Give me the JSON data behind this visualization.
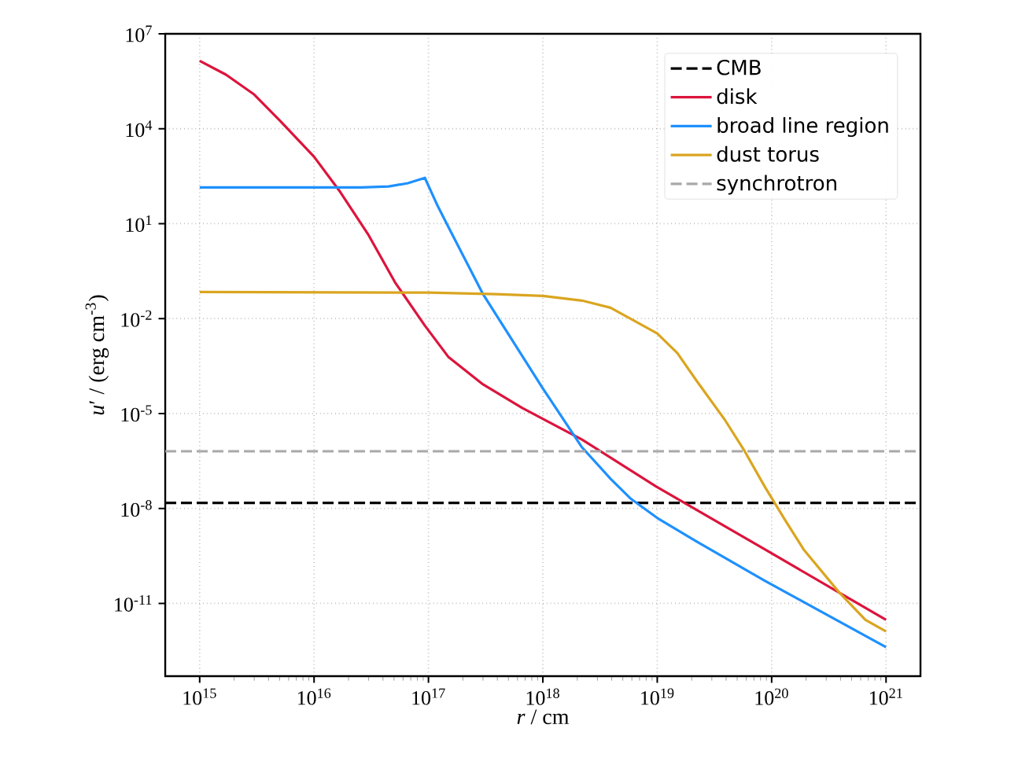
{
  "chart_data": {
    "type": "line",
    "xlabel": "*r* / cm",
    "ylabel": "*u*′ / (erg cm$^{-3}$)",
    "log": "xy",
    "grid": true,
    "legend": "top right",
    "marker": "none",
    "xlim": [
      500000000000000.0,
      2e+21
    ],
    "ylim": [
      5e-14,
      10000000.0
    ],
    "xticks": [
      {
        "value": 1000000000000000.0,
        "label": "10$^{15}$"
      },
      {
        "value": 1e+16,
        "label": "10$^{16}$"
      },
      {
        "value": 1e+17,
        "label": "10$^{17}$"
      },
      {
        "value": 1e+18,
        "label": "10$^{18}$"
      },
      {
        "value": 1e+19,
        "label": "10$^{19}$"
      },
      {
        "value": 1e+20,
        "label": "10$^{20}$"
      },
      {
        "value": 1e+21,
        "label": "10$^{21}$"
      }
    ],
    "yticks": [
      {
        "value": 10000000.0,
        "label": "10$^{7}$"
      },
      {
        "value": 10000.0,
        "label": "10$^{4}$"
      },
      {
        "value": 10,
        "label": "10$^{1}$"
      },
      {
        "value": 0.01,
        "label": "10$^{-2}$"
      },
      {
        "value": 1e-05,
        "label": "10$^{-5}$"
      },
      {
        "value": 1e-08,
        "label": "10$^{-8}$"
      },
      {
        "value": 1e-11,
        "label": "10$^{-11}$"
      }
    ],
    "series": [
      {
        "name": "CMB",
        "color": "#000000",
        "line_style": "dashed",
        "x": [
          500000000000000.0,
          2e+21
        ],
        "values": [
          1.5e-08,
          1.5e-08
        ]
      },
      {
        "name": "disk",
        "color": "#dc143c",
        "line_style": "solid",
        "x": [
          1000000000000000.0,
          1700000000000000.0,
          3000000000000000.0,
          5100000000000000.0,
          1e+16,
          1.7e+16,
          3e+16,
          5.1e+16,
          9.3e+16,
          1.5e+17,
          3e+17,
          6.6e+17,
          2.2e+18,
          9.8e+18,
          8.7e+19,
          1e+21
        ],
        "values": [
          1400000.0,
          510000.0,
          120000.0,
          17000.0,
          1300.0,
          98,
          4.3,
          0.14,
          0.006,
          0.0006,
          8.3e-05,
          1.5e-05,
          1.5e-06,
          4.9e-08,
          5.1e-10,
          3e-12
        ]
      },
      {
        "name": "broad line region",
        "color": "#1e90ff",
        "line_style": "solid",
        "x": [
          1000000000000000.0,
          2.6e+16,
          4.5e+16,
          6.6e+16,
          9.3e+16,
          1.2e+17,
          1.5e+17,
          3e+17,
          1e+18,
          2.2e+18,
          3.9e+18,
          5.8e+18,
          1e+19,
          2.2e+19,
          8.7e+19,
          1e+21
        ],
        "values": [
          140,
          140,
          150,
          190,
          280,
          37,
          7.6,
          0.059,
          6.2e-05,
          8.5e-07,
          8.7e-08,
          2.1e-08,
          5e-09,
          9.1e-10,
          5.2e-11,
          4.1e-13
        ]
      },
      {
        "name": "dust torus",
        "color": "#daa520",
        "line_style": "solid",
        "x": [
          1000000000000000.0,
          1e+17,
          3.9e+17,
          1e+18,
          2.2e+18,
          3.9e+18,
          5.8e+18,
          1e+19,
          1.5e+19,
          2.2e+19,
          3.9e+19,
          5.8e+19,
          8.7e+19,
          1.3e+20,
          1.9e+20,
          3.9e+20,
          6.6e+20,
          1e+21
        ],
        "values": [
          0.069,
          0.066,
          0.059,
          0.052,
          0.037,
          0.022,
          0.01,
          0.0034,
          0.00081,
          0.00011,
          6.3e-06,
          6.5e-07,
          4.9e-08,
          4.5e-09,
          5.1e-10,
          2.2e-11,
          3e-12,
          1.3e-12
        ]
      },
      {
        "name": "synchrotron",
        "color": "#a9a9a9",
        "line_style": "dashed",
        "x": [
          500000000000000.0,
          2e+21
        ],
        "values": [
          6.4e-07,
          6.4e-07
        ]
      }
    ]
  }
}
